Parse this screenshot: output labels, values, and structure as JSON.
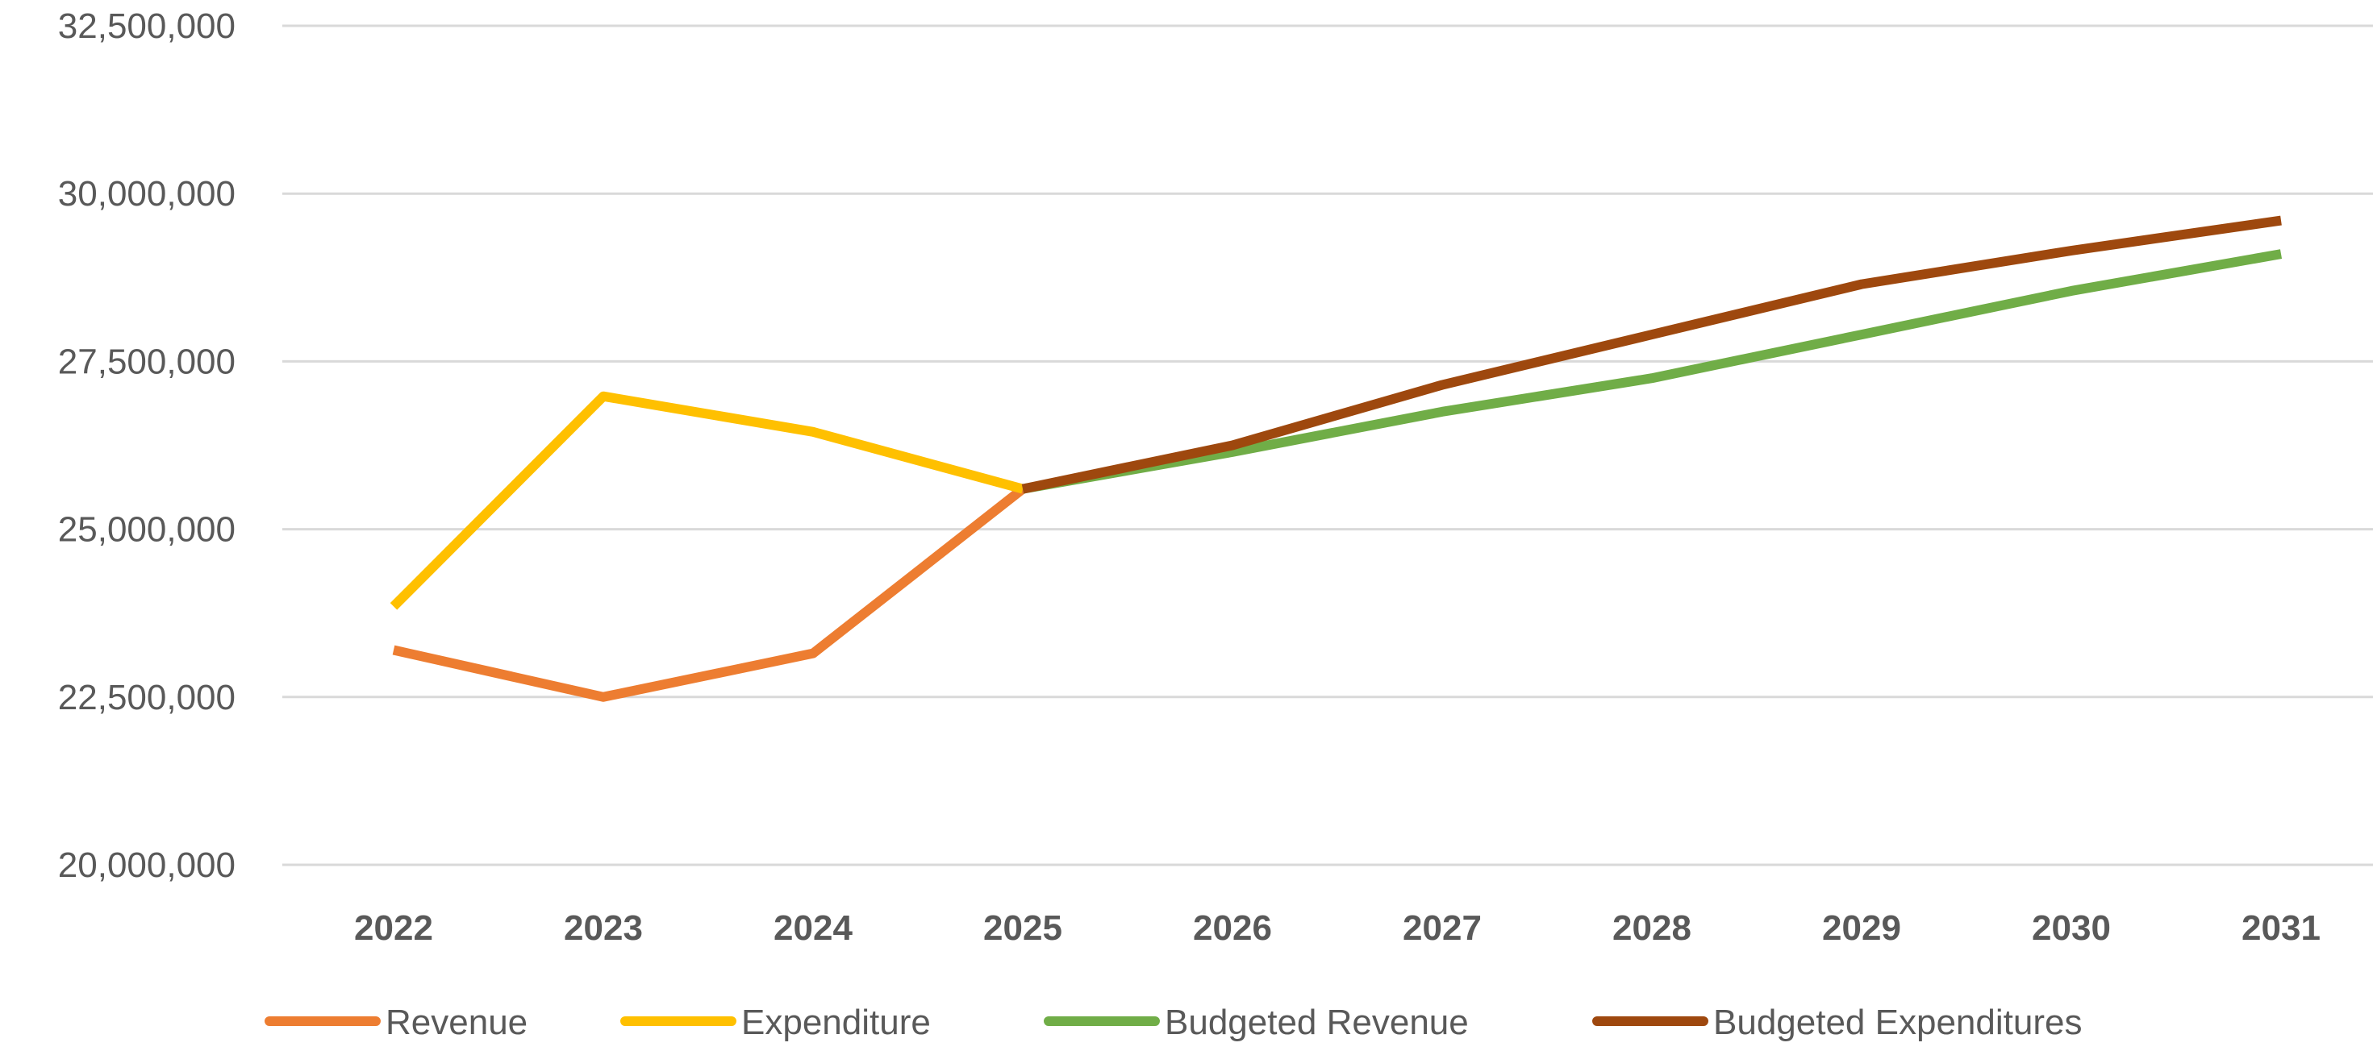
{
  "chart_data": {
    "type": "line",
    "title": "",
    "xlabel": "",
    "ylabel": "",
    "ylim": [
      20000000,
      32500000
    ],
    "yticks": [
      20000000,
      22500000,
      25000000,
      27500000,
      30000000,
      32500000
    ],
    "ytick_labels": [
      "20,000,000",
      "22,500,000",
      "25,000,000",
      "27,500,000",
      "30,000,000",
      "32,500,000"
    ],
    "grid": true,
    "legend_position": "bottom",
    "categories": [
      "2022",
      "2023",
      "2024",
      "2025",
      "2026",
      "2027",
      "2028",
      "2029",
      "2030",
      "2031"
    ],
    "series": [
      {
        "name": "Revenue",
        "color": "#ED7D31",
        "values": [
          23200000,
          22500000,
          23150000,
          25600000,
          null,
          null,
          null,
          null,
          null,
          null
        ]
      },
      {
        "name": "Expenditure",
        "color": "#FFC000",
        "values": [
          23850000,
          26980000,
          26450000,
          25600000,
          null,
          null,
          null,
          null,
          null,
          null
        ]
      },
      {
        "name": "Budgeted Revenue",
        "color": "#70AD47",
        "values": [
          null,
          null,
          null,
          25600000,
          26150000,
          26750000,
          27250000,
          27900000,
          28550000,
          29100000
        ]
      },
      {
        "name": "Budgeted Expenditures",
        "color": "#9E480E",
        "values": [
          null,
          null,
          null,
          25600000,
          26250000,
          27150000,
          27900000,
          28650000,
          29150000,
          29600000
        ]
      }
    ]
  }
}
